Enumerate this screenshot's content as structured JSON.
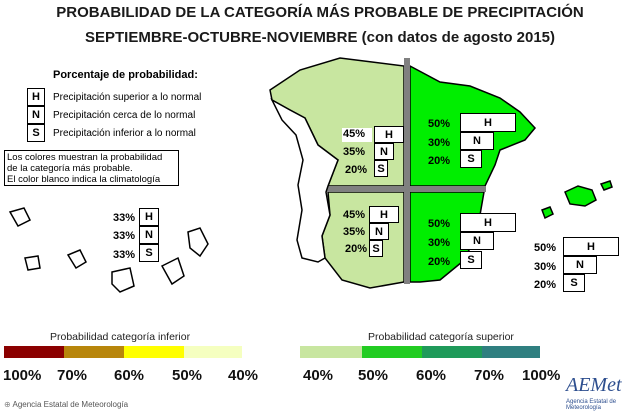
{
  "title": {
    "line1": "PROBABILIDAD DE LA CATEGORÍA MÁS PROBABLE DE PRECIPITACIÓN",
    "line2": "SEPTIEMBRE-OCTUBRE-NOVIEMBRE (con datos de agosto 2015)"
  },
  "legend": {
    "heading": "Porcentaje de probabilidad:",
    "items": [
      {
        "key": "H",
        "text": "Precipitación superior a lo normal"
      },
      {
        "key": "N",
        "text": "Precipitación cerca de lo normal"
      },
      {
        "key": "S",
        "text": "Precipitación inferior a lo normal"
      }
    ],
    "note": [
      "Los colores muestran la probabilidad",
      "de la categoría más probable.",
      "El color blanco indica la climatología"
    ]
  },
  "regions": {
    "northwest": {
      "H": "45%",
      "N": "35%",
      "S": "20%"
    },
    "northeast": {
      "H": "50%",
      "N": "30%",
      "S": "20%"
    },
    "southwest": {
      "H": "45%",
      "N": "35%",
      "S": "20%"
    },
    "southeast": {
      "H": "50%",
      "N": "30%",
      "S": "20%"
    },
    "canarias": {
      "H": "33%",
      "N": "33%",
      "S": "33%"
    },
    "baleares": {
      "H": "50%",
      "N": "30%",
      "S": "20%"
    }
  },
  "scale": {
    "inferior_label": "Probabilidad categoría inferior",
    "superior_label": "Probabilidad categoría superior",
    "inferior_colors": [
      "#8b0000",
      "#b8860b",
      "#ffff00",
      "#f5ffc0"
    ],
    "superior_colors": [
      "#c8e6a0",
      "#22cc22",
      "#1f9a5a",
      "#2f7f80"
    ],
    "inferior_ticks": [
      "100%",
      "70%",
      "60%",
      "50%",
      "40%"
    ],
    "superior_ticks": [
      "40%",
      "50%",
      "60%",
      "70%",
      "100%"
    ]
  },
  "colors": {
    "light_green": "#c8e6a0",
    "bright_green": "#00ee00",
    "grid": "#808080"
  },
  "footer": {
    "agency": "Agencia Estatal de Meteorología",
    "logo_text": "AEMet",
    "logo_sub": "Agencia Estatal de Meteorología"
  }
}
